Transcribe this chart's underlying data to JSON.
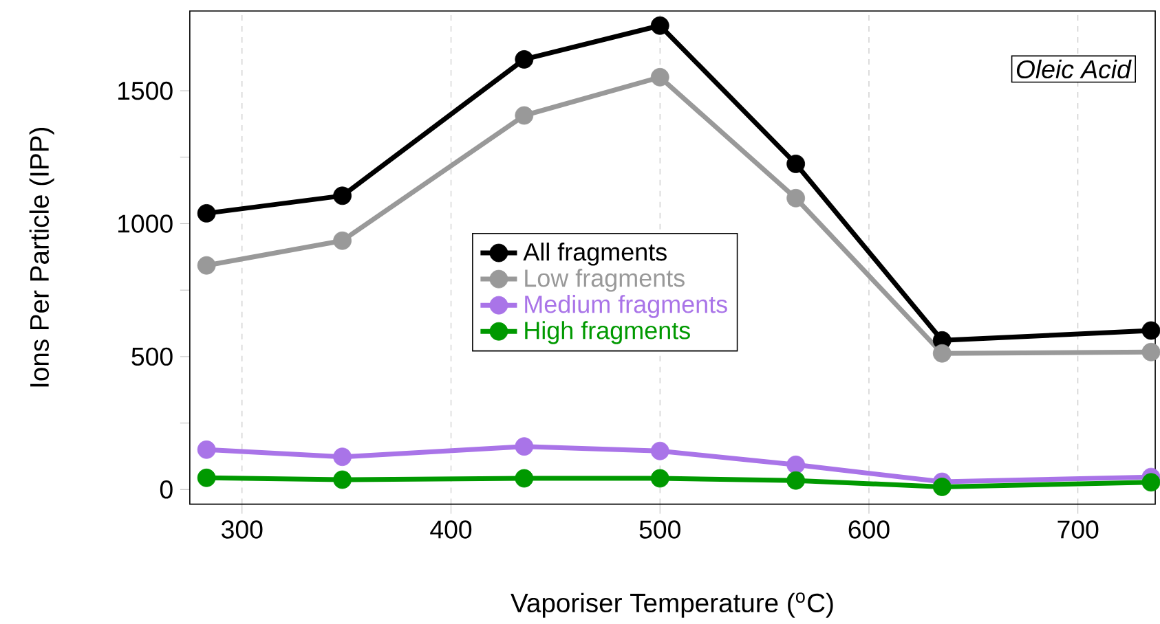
{
  "chart_data": {
    "type": "line",
    "xlabel": "Vaporiser Temperature ($^{o}$C)",
    "ylabel": "Ions Per Particle (IPP)",
    "annotations": [
      "*Oleic Acid*"
    ],
    "x": [
      283,
      348,
      435,
      500,
      565,
      635,
      735
    ],
    "series": [
      {
        "name": "All fragments",
        "color": "#000000",
        "values": [
          1039,
          1105,
          1618,
          1745,
          1225,
          561,
          598
        ]
      },
      {
        "name": "Low fragments",
        "color": "#999999",
        "values": [
          843,
          936,
          1407,
          1551,
          1096,
          512,
          517
        ]
      },
      {
        "name": "Medium fragments",
        "color": "#a974e8",
        "values": [
          150,
          123,
          162,
          145,
          93,
          29,
          47
        ]
      },
      {
        "name": "High fragments",
        "color": "#009900",
        "values": [
          44,
          37,
          42,
          42,
          34,
          10,
          27
        ]
      }
    ],
    "xlim": [
      275,
      737
    ],
    "ylim": [
      -55,
      1800
    ],
    "xticks": [
      300,
      400,
      500,
      600,
      700
    ],
    "yticks": [
      0,
      {
        "value": 250,
        "label": null
      },
      500,
      {
        "value": 750,
        "label": null
      },
      1000,
      {
        "value": 1250,
        "label": null
      },
      1500
    ],
    "grid": "x",
    "legend": "left",
    "marker": "circle",
    "line_style": "solid"
  }
}
